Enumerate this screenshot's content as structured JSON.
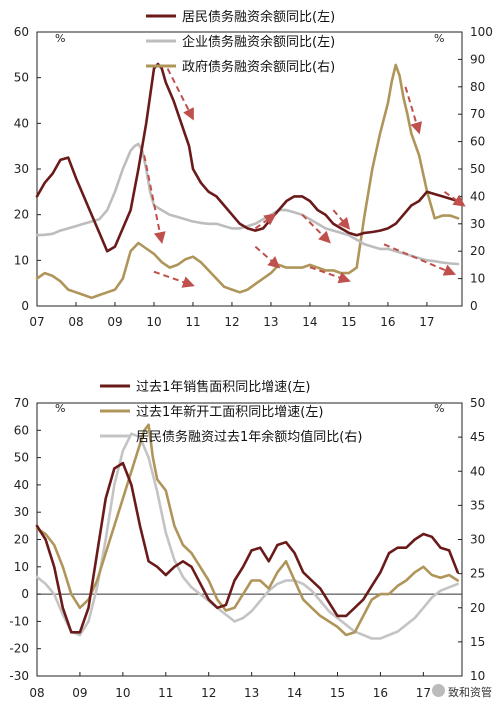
{
  "chart_data": [
    {
      "type": "line",
      "unit_left": "%",
      "unit_right": "%",
      "x_ticks": [
        "07",
        "08",
        "09",
        "10",
        "11",
        "12",
        "13",
        "14",
        "15",
        "16",
        "17"
      ],
      "xlim": [
        2007,
        2017.9
      ],
      "ylim_left": [
        0,
        60
      ],
      "yticks_left": [
        0,
        10,
        20,
        30,
        40,
        50,
        60
      ],
      "ylim_right": [
        0,
        100
      ],
      "yticks_right": [
        0,
        10,
        20,
        30,
        40,
        50,
        60,
        70,
        80,
        90,
        100
      ],
      "legend_position": "top-center",
      "series": [
        {
          "name": "居民债务融资余额同比(左)",
          "color": "#6b1a1a",
          "axis": "left",
          "x": [
            2007.0,
            2007.2,
            2007.4,
            2007.6,
            2007.8,
            2008.0,
            2008.2,
            2008.4,
            2008.6,
            2008.8,
            2009.0,
            2009.2,
            2009.4,
            2009.6,
            2009.8,
            2009.9,
            2010.0,
            2010.1,
            2010.2,
            2010.3,
            2010.5,
            2010.7,
            2010.9,
            2011.0,
            2011.2,
            2011.4,
            2011.6,
            2011.8,
            2012.0,
            2012.2,
            2012.4,
            2012.6,
            2012.8,
            2013.0,
            2013.2,
            2013.4,
            2013.6,
            2013.8,
            2014.0,
            2014.2,
            2014.4,
            2014.6,
            2014.8,
            2015.0,
            2015.2,
            2015.4,
            2015.6,
            2015.8,
            2016.0,
            2016.2,
            2016.4,
            2016.6,
            2016.8,
            2017.0,
            2017.2,
            2017.4,
            2017.6,
            2017.8
          ],
          "y": [
            24,
            27,
            29,
            32,
            32.5,
            28,
            24,
            20,
            16,
            12,
            13,
            17,
            21,
            30,
            40,
            46,
            52,
            53,
            52,
            49,
            45,
            40,
            35,
            30,
            27,
            25,
            24,
            22,
            20,
            18,
            17,
            16.5,
            17,
            19,
            21,
            23,
            24,
            24,
            23,
            21,
            20,
            18,
            17,
            16,
            15.5,
            16,
            16.2,
            16.5,
            17,
            18,
            20,
            22,
            23,
            25,
            24.5,
            24,
            23.5,
            23
          ]
        },
        {
          "name": "企业债务融资余额同比(左)",
          "color": "#bdbdbd",
          "axis": "left",
          "x": [
            2007.0,
            2007.2,
            2007.4,
            2007.6,
            2007.8,
            2008.0,
            2008.2,
            2008.4,
            2008.6,
            2008.8,
            2009.0,
            2009.2,
            2009.4,
            2009.5,
            2009.6,
            2009.7,
            2009.8,
            2009.9,
            2010.0,
            2010.2,
            2010.4,
            2010.6,
            2010.8,
            2011.0,
            2011.2,
            2011.4,
            2011.6,
            2011.8,
            2012.0,
            2012.2,
            2012.4,
            2012.6,
            2012.8,
            2013.0,
            2013.2,
            2013.4,
            2013.6,
            2013.8,
            2014.0,
            2014.2,
            2014.4,
            2014.6,
            2014.8,
            2015.0,
            2015.2,
            2015.4,
            2015.6,
            2015.8,
            2016.0,
            2016.2,
            2016.4,
            2016.6,
            2016.8,
            2017.0,
            2017.2,
            2017.4,
            2017.6,
            2017.8
          ],
          "y": [
            15.5,
            15.6,
            15.8,
            16.5,
            17,
            17.5,
            18,
            18.5,
            19,
            21,
            25,
            30,
            34,
            35,
            35.5,
            34,
            30,
            25,
            22,
            21,
            20,
            19.5,
            19,
            18.5,
            18.2,
            18,
            18,
            17.5,
            17,
            17,
            17.5,
            18,
            19,
            20,
            21,
            21,
            20.5,
            20,
            19,
            18,
            17,
            16.5,
            16,
            15.5,
            14.5,
            13.5,
            13,
            12.5,
            12.5,
            12,
            11.5,
            11,
            10.5,
            10,
            9.8,
            9.5,
            9.3,
            9.2
          ]
        },
        {
          "name": "政府债务融资余额同比(右)",
          "color": "#b0955a",
          "axis": "right",
          "x": [
            2007.0,
            2007.2,
            2007.4,
            2007.6,
            2007.8,
            2008.0,
            2008.2,
            2008.4,
            2008.6,
            2008.8,
            2009.0,
            2009.2,
            2009.4,
            2009.6,
            2009.8,
            2010.0,
            2010.2,
            2010.4,
            2010.6,
            2010.8,
            2011.0,
            2011.2,
            2011.4,
            2011.6,
            2011.8,
            2012.0,
            2012.2,
            2012.4,
            2012.6,
            2012.8,
            2013.0,
            2013.2,
            2013.4,
            2013.6,
            2013.8,
            2014.0,
            2014.2,
            2014.4,
            2014.6,
            2014.8,
            2015.0,
            2015.2,
            2015.4,
            2015.6,
            2015.8,
            2016.0,
            2016.1,
            2016.2,
            2016.3,
            2016.4,
            2016.5,
            2016.6,
            2016.8,
            2017.0,
            2017.2,
            2017.4,
            2017.6,
            2017.8
          ],
          "y": [
            10,
            12,
            11,
            9,
            6,
            5,
            4,
            3,
            4,
            5,
            6,
            10,
            20,
            23,
            21,
            19,
            16,
            14,
            15,
            17,
            18,
            16,
            13,
            10,
            7,
            6,
            5,
            6,
            8,
            10,
            12,
            15,
            14,
            14,
            14,
            15,
            14,
            13,
            13,
            12,
            12,
            14,
            33,
            50,
            63,
            74,
            82,
            88,
            84,
            76,
            70,
            63,
            55,
            42,
            32,
            33,
            33,
            32
          ]
        }
      ],
      "annotation": "dashed arrows"
    },
    {
      "type": "line",
      "unit_left": "%",
      "unit_right": "%",
      "x_ticks": [
        "08",
        "09",
        "10",
        "11",
        "12",
        "13",
        "14",
        "15",
        "16",
        "17"
      ],
      "xlim": [
        2008,
        2017.9
      ],
      "ylim_left": [
        -30,
        70
      ],
      "yticks_left": [
        -30,
        -20,
        -10,
        0,
        10,
        20,
        30,
        40,
        50,
        60,
        70
      ],
      "ylim_right": [
        10,
        50
      ],
      "yticks_right": [
        10,
        15,
        20,
        25,
        30,
        35,
        40,
        45,
        50
      ],
      "legend_position": "top-center",
      "series": [
        {
          "name": "过去1年销售面积同比增速(左)",
          "color": "#6b1a1a",
          "axis": "left",
          "x": [
            2008.0,
            2008.2,
            2008.4,
            2008.6,
            2008.8,
            2009.0,
            2009.2,
            2009.4,
            2009.6,
            2009.8,
            2010.0,
            2010.2,
            2010.4,
            2010.6,
            2010.8,
            2011.0,
            2011.2,
            2011.4,
            2011.6,
            2011.8,
            2012.0,
            2012.2,
            2012.4,
            2012.6,
            2012.8,
            2013.0,
            2013.2,
            2013.4,
            2013.6,
            2013.8,
            2014.0,
            2014.2,
            2014.4,
            2014.6,
            2014.8,
            2015.0,
            2015.2,
            2015.4,
            2015.6,
            2015.8,
            2016.0,
            2016.2,
            2016.4,
            2016.6,
            2016.8,
            2017.0,
            2017.2,
            2017.4,
            2017.6,
            2017.8
          ],
          "y": [
            25,
            20,
            10,
            -5,
            -14,
            -14,
            -5,
            15,
            35,
            46,
            48,
            40,
            25,
            12,
            10,
            7,
            10,
            12,
            10,
            4,
            -2,
            -5,
            -4,
            5,
            10,
            16,
            17,
            12,
            18,
            19,
            15,
            8,
            5,
            2,
            -3,
            -8,
            -8,
            -5,
            -2,
            3,
            8,
            15,
            17,
            17,
            20,
            22,
            21,
            17,
            16,
            8
          ]
        },
        {
          "name": "过去1年新开工面积同比增速(左)",
          "color": "#b0955a",
          "axis": "left",
          "x": [
            2008.0,
            2008.2,
            2008.4,
            2008.6,
            2008.8,
            2009.0,
            2009.2,
            2009.4,
            2009.6,
            2009.8,
            2010.0,
            2010.2,
            2010.4,
            2010.5,
            2010.6,
            2010.7,
            2010.8,
            2011.0,
            2011.2,
            2011.4,
            2011.6,
            2011.8,
            2012.0,
            2012.2,
            2012.4,
            2012.6,
            2012.8,
            2013.0,
            2013.2,
            2013.4,
            2013.6,
            2013.8,
            2014.0,
            2014.2,
            2014.4,
            2014.6,
            2014.8,
            2015.0,
            2015.2,
            2015.4,
            2015.6,
            2015.8,
            2016.0,
            2016.2,
            2016.4,
            2016.6,
            2016.8,
            2017.0,
            2017.2,
            2017.4,
            2017.6,
            2017.8
          ],
          "y": [
            24,
            22,
            18,
            10,
            0,
            -5,
            -2,
            5,
            15,
            25,
            35,
            45,
            55,
            60,
            62,
            50,
            42,
            38,
            25,
            18,
            15,
            10,
            5,
            -2,
            -6,
            -5,
            0,
            5,
            5,
            2,
            8,
            12,
            5,
            -2,
            -5,
            -8,
            -10,
            -12,
            -15,
            -14,
            -8,
            -2,
            0,
            0,
            3,
            5,
            8,
            10,
            7,
            6,
            7,
            5
          ]
        },
        {
          "name": "居民债务融资过去1年余额均值同比(右)",
          "color": "#c4c4c4",
          "axis": "right",
          "x": [
            2008.0,
            2008.2,
            2008.4,
            2008.6,
            2008.8,
            2009.0,
            2009.2,
            2009.4,
            2009.6,
            2009.8,
            2010.0,
            2010.2,
            2010.4,
            2010.6,
            2010.8,
            2011.0,
            2011.2,
            2011.4,
            2011.6,
            2011.8,
            2012.0,
            2012.2,
            2012.4,
            2012.6,
            2012.8,
            2013.0,
            2013.2,
            2013.4,
            2013.6,
            2013.8,
            2014.0,
            2014.2,
            2014.4,
            2014.6,
            2014.8,
            2015.0,
            2015.2,
            2015.4,
            2015.6,
            2015.8,
            2016.0,
            2016.2,
            2016.4,
            2016.6,
            2016.8,
            2017.0,
            2017.2,
            2017.4,
            2017.6,
            2017.8
          ],
          "y": [
            24.5,
            23.5,
            22,
            19,
            16.5,
            16,
            18,
            23,
            30,
            38,
            43,
            45.5,
            45,
            42,
            37,
            31,
            27,
            24.5,
            23,
            22,
            21,
            20,
            19,
            18,
            18.5,
            19.5,
            21,
            22.5,
            23.5,
            24,
            24,
            23.5,
            22.5,
            21,
            19.5,
            18.5,
            17.5,
            16.5,
            16,
            15.5,
            15.5,
            16,
            16.5,
            17.5,
            18.5,
            20,
            21.5,
            22.5,
            23,
            23.5
          ]
        }
      ]
    }
  ],
  "watermark": "致和资管"
}
